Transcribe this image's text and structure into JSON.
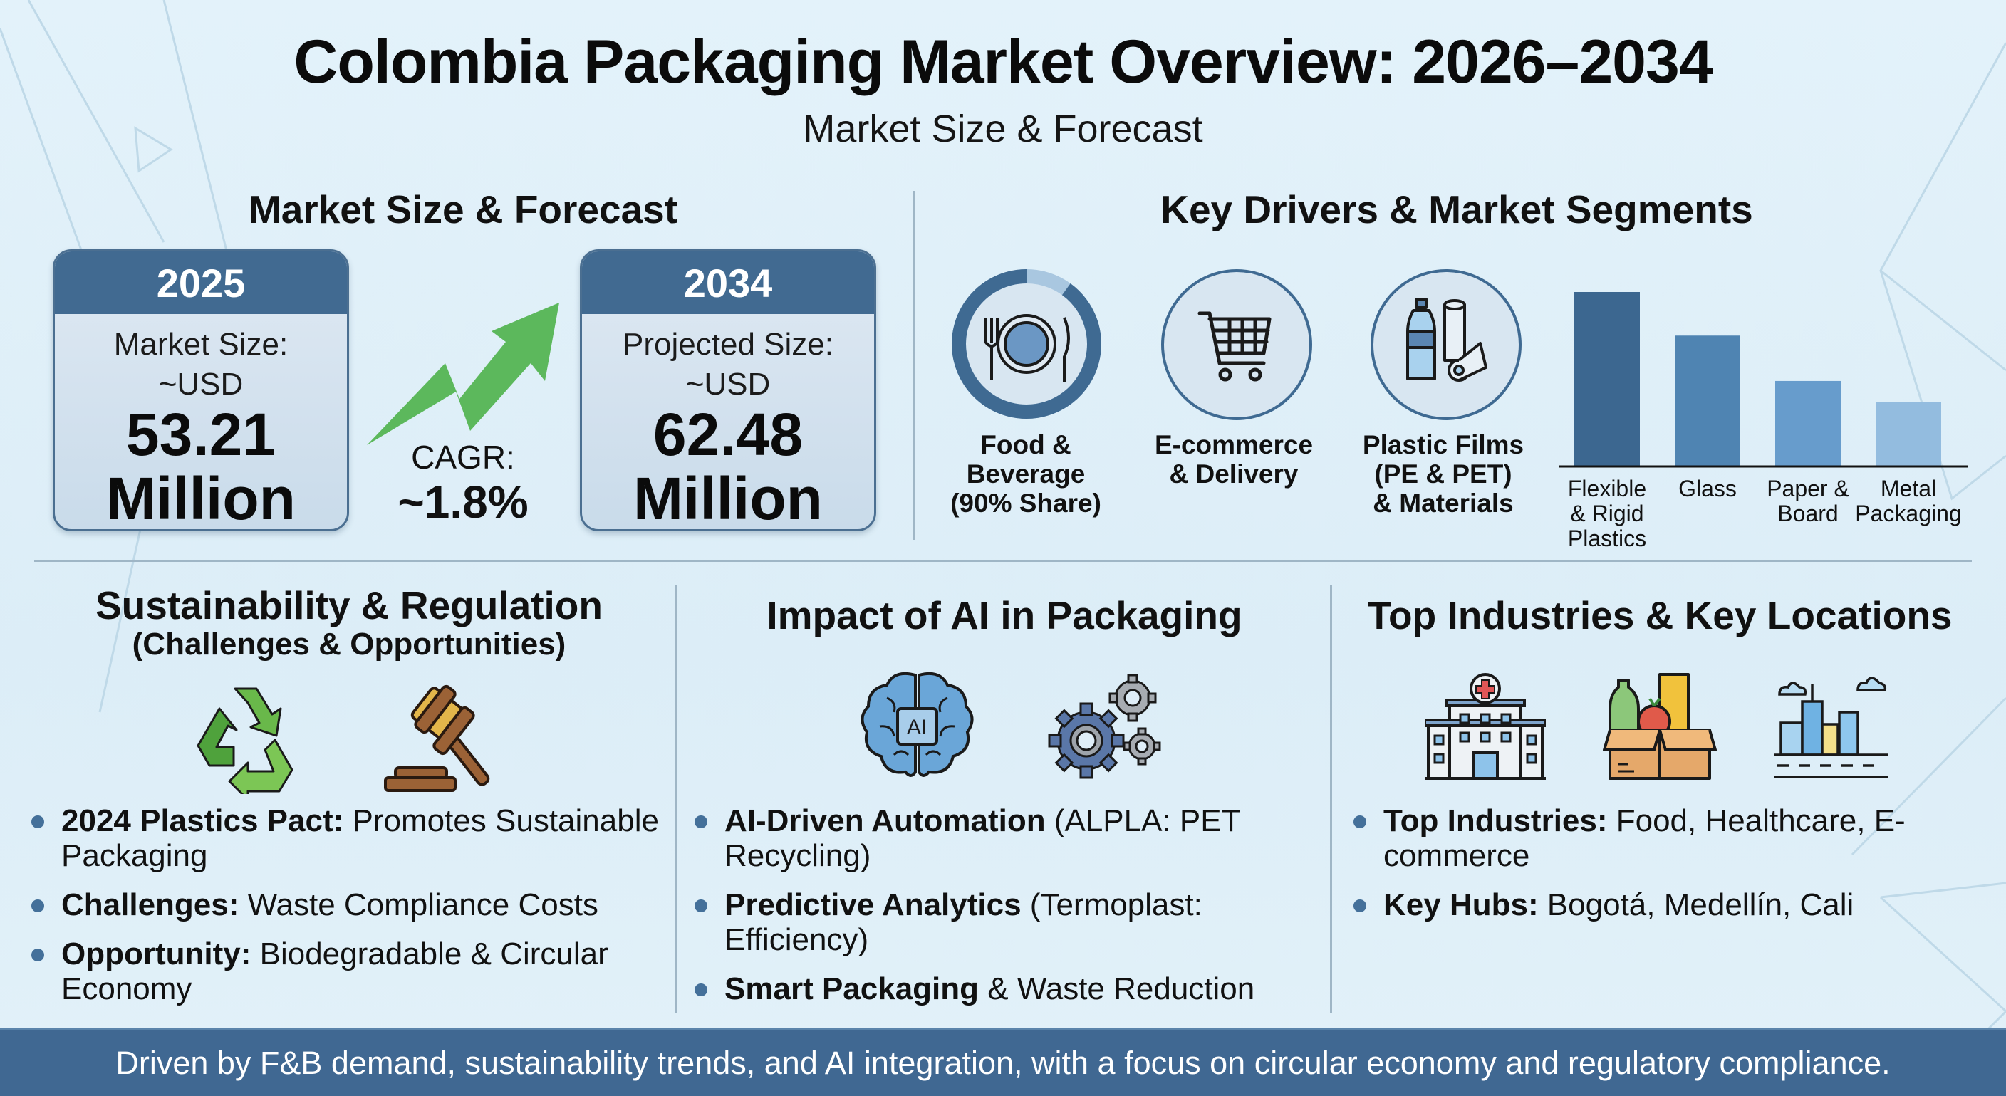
{
  "header": {
    "title": "Colombia Packaging Market Overview: 2026–2034",
    "subtitle": "Market Size & Forecast"
  },
  "market_size": {
    "heading": "Market Size & Forecast",
    "current": {
      "year": "2025",
      "label": "Market Size:",
      "currency": "~USD",
      "value": "53.21",
      "unit": "Million"
    },
    "cagr": {
      "label": "CAGR:",
      "value": "~1.8%"
    },
    "projected": {
      "year": "2034",
      "label": "Projected Size:",
      "currency": "~USD",
      "value": "62.48",
      "unit": "Million"
    }
  },
  "drivers": {
    "heading": "Key Drivers & Market Segments",
    "items": [
      {
        "icon": "plate-fork-knife-icon",
        "line1": "Food &",
        "line2": "Beverage",
        "line3": "(90% Share)",
        "share_percent": 90
      },
      {
        "icon": "shopping-cart-icon",
        "line1": "E-commerce",
        "line2": "& Delivery",
        "line3": ""
      },
      {
        "icon": "bottle-film-roll-icon",
        "line1": "Plastic Films",
        "line2": "(PE & PET)",
        "line3": "& Materials"
      }
    ]
  },
  "chart_data": {
    "type": "bar",
    "title": "",
    "xlabel": "",
    "ylabel": "",
    "categories": [
      "Flexible & Rigid Plastics",
      "Glass",
      "Paper & Board",
      "Metal Packaging"
    ],
    "category_lines": [
      [
        "Flexible",
        "& Rigid",
        "Plastics"
      ],
      [
        "Glass"
      ],
      [
        "Paper &",
        "Board"
      ],
      [
        "Metal",
        "Packaging"
      ]
    ],
    "values": [
      100,
      75,
      49,
      37
    ],
    "value_note": "relative bar heights (no axis values shown)",
    "ylim": [
      0,
      100
    ],
    "colors": [
      "#3c6790",
      "#4f84b2",
      "#679ccc",
      "#93bcdf"
    ],
    "grid": false,
    "legend": "none"
  },
  "sustainability": {
    "heading": "Sustainability & Regulation",
    "subheading": "(Challenges & Opportunities)",
    "bullets": [
      {
        "bold": "2024 Plastics Pact:",
        "text": " Promotes Sustainable Packaging"
      },
      {
        "bold": "Challenges:",
        "text": " Waste Compliance Costs"
      },
      {
        "bold": "Opportunity:",
        "text": " Biodegradable & Circular Economy"
      }
    ]
  },
  "ai": {
    "heading": "Impact of AI in Packaging",
    "brain_label": "AI",
    "bullets": [
      {
        "bold": "AI-Driven Automation",
        "text": " (ALPLA: PET Recycling)"
      },
      {
        "bold": "Predictive Analytics",
        "text": " (Termoplast: Efficiency)"
      },
      {
        "bold": "Smart Packaging",
        "text": " & Waste Reduction"
      }
    ]
  },
  "industries": {
    "heading": "Top Industries & Key Locations",
    "bullets": [
      {
        "bold": "Top Industries:",
        "text": " Food, Healthcare, E-commerce"
      },
      {
        "bold": "Key Hubs:",
        "text": " Bogotá, Medellín, Cali"
      }
    ]
  },
  "footer": {
    "text": "Driven by F&B demand, sustainability trends, and AI integration, with a focus on circular economy and regulatory compliance."
  },
  "colors": {
    "primary": "#416a91",
    "accent_green": "#5cb85c",
    "background": "#e3f2fa"
  }
}
